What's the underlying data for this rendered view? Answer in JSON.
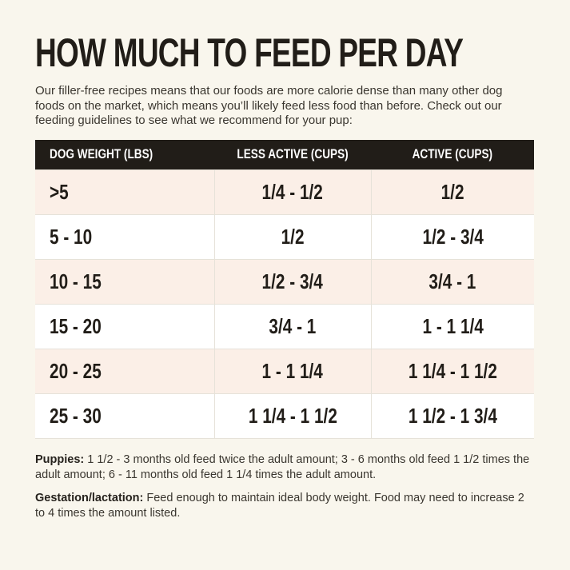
{
  "header": {
    "title": "HOW MUCH TO FEED PER DAY",
    "intro": "Our filler-free recipes means that our foods are more calorie dense than many other dog foods on the market, which means you’ll likely feed less food than before. Check out our feeding guidelines to see what we recommend for your pup:"
  },
  "table": {
    "columns": [
      "DOG WEIGHT (LBS)",
      "LESS ACTIVE (CUPS)",
      "ACTIVE (CUPS)"
    ],
    "rows": [
      {
        "weight": ">5",
        "less_active": "1/4 - 1/2",
        "active": "1/2"
      },
      {
        "weight": "5 - 10",
        "less_active": "1/2",
        "active": "1/2 - 3/4"
      },
      {
        "weight": "10 - 15",
        "less_active": "1/2 - 3/4",
        "active": "3/4 - 1"
      },
      {
        "weight": "15 - 20",
        "less_active": "3/4 - 1",
        "active": "1 - 1 1/4"
      },
      {
        "weight": "20 - 25",
        "less_active": "1 - 1 1/4",
        "active": "1 1/4 - 1 1/2"
      },
      {
        "weight": "25 - 30",
        "less_active": "1 1/4 - 1 1/2",
        "active": "1 1/2 - 1 3/4"
      }
    ]
  },
  "notes": [
    {
      "label": "Puppies:",
      "text": "1 1/2 - 3 months old feed twice the adult amount; 3 - 6 months old feed 1 1/2 times the adult amount; 6 - 11 months old feed 1 1/4 times the adult amount."
    },
    {
      "label": "Gestation/lactation:",
      "text": "Feed enough to maintain ideal body weight. Food may need to increase 2 to 4 times the amount listed."
    }
  ],
  "colors": {
    "page_bg": "#f9f6ed",
    "header_bar_bg": "#211d18",
    "header_bar_text": "#ffffff",
    "row_alt_bg": "#fbefe7",
    "row_bg": "#ffffff",
    "border": "#e6e2d9",
    "title_text": "#211d18",
    "body_text": "#3a362f"
  }
}
